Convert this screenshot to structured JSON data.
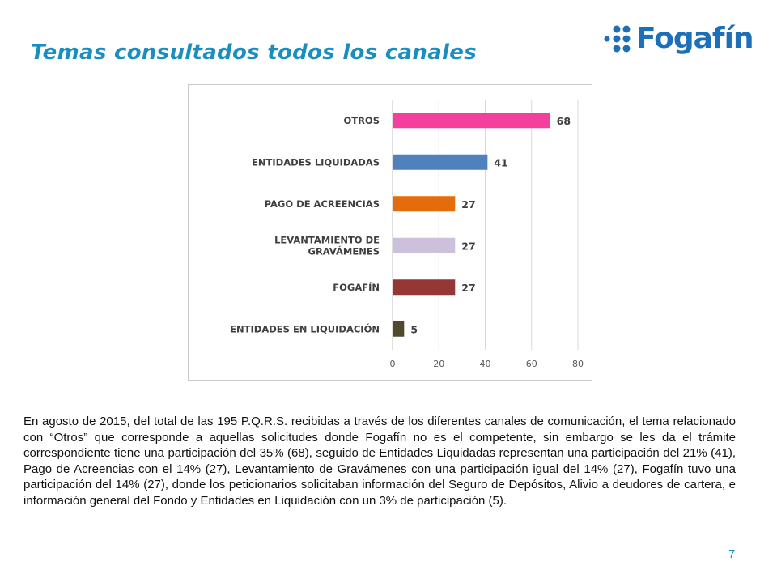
{
  "slide": {
    "title": "Temas consultados todos los canales",
    "page_number": "7",
    "paragraph": "En agosto de 2015, del total de las 195 P.Q.R.S. recibidas a través de los diferentes canales de comunicación, el tema relacionado con “Otros” que corresponde a aquellas solicitudes donde Fogafín no es el competente, sin embargo se les da el trámite correspondiente tiene una participación del 35% (68), seguido de Entidades Liquidadas representan una participación del 21% (41), Pago de Acreencias con el 14% (27), Levantamiento de Gravámenes con una participación igual del 14% (27), Fogafín tuvo una participación del 14% (27), donde los peticionarios solicitaban información del Seguro de Depósitos, Alivio a deudores de cartera, e información general del Fondo y Entidades en Liquidación con un 3% de participación (5)."
  },
  "logo": {
    "text": "Fogafín",
    "icon": "dot-grid-icon",
    "color": "#1d6fb8"
  },
  "chart_data": {
    "type": "bar",
    "orientation": "horizontal",
    "categories": [
      [
        "OTROS"
      ],
      [
        "ENTIDADES LIQUIDADAS"
      ],
      [
        "PAGO DE ACREENCIAS"
      ],
      [
        "LEVANTAMIENTO DE",
        "GRAVÁMENES"
      ],
      [
        "FOGAFÍN"
      ],
      [
        "ENTIDADES EN LIQUIDACIÓN"
      ]
    ],
    "values": [
      68,
      41,
      27,
      27,
      27,
      5
    ],
    "colors": [
      "#f2409c",
      "#4f81bd",
      "#e46c0a",
      "#ccc0da",
      "#953735",
      "#4f4a2e"
    ],
    "xlim": [
      0,
      80
    ],
    "xticks": [
      0,
      20,
      40,
      60,
      80
    ],
    "grid": true,
    "data_labels": true,
    "legend": "none"
  }
}
